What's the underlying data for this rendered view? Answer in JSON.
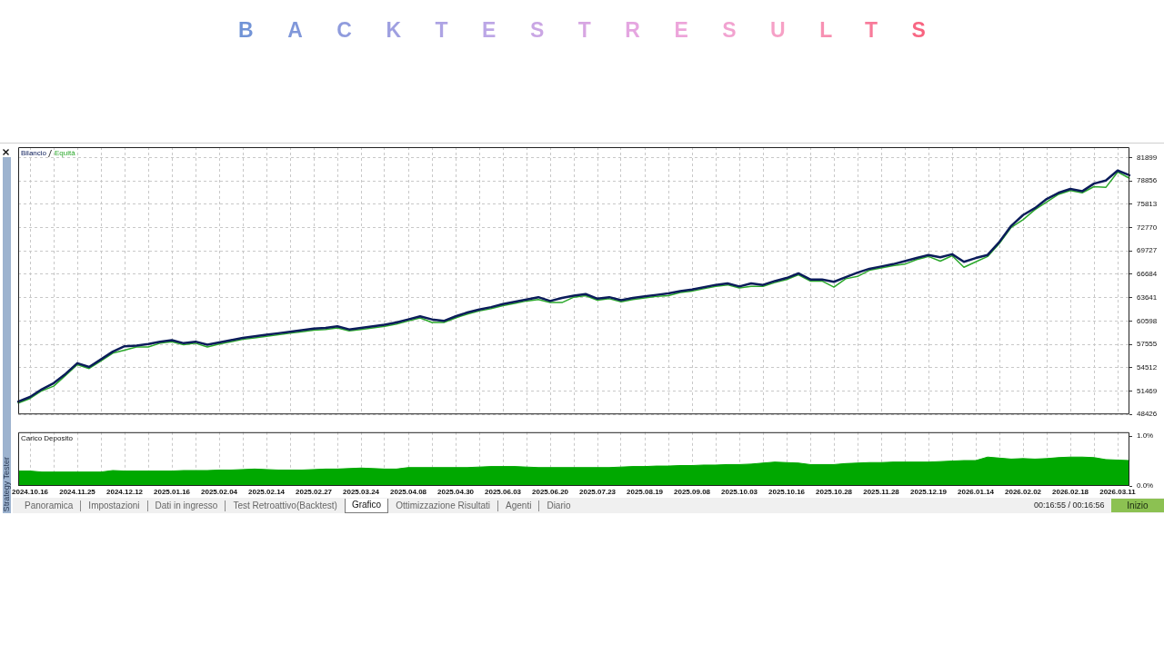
{
  "chart_data": [
    {
      "type": "line",
      "title": "BACKTESTRESULTS",
      "categories": [
        null,
        "2024.10.16",
        null,
        null,
        null,
        "2024.11.25",
        null,
        null,
        null,
        "2024.12.12",
        null,
        null,
        null,
        "2025.01.16",
        null,
        null,
        null,
        "2025.02.04",
        null,
        null,
        null,
        "2025.02.14",
        null,
        null,
        null,
        "2025.02.27",
        null,
        null,
        null,
        "2025.03.24",
        null,
        null,
        null,
        "2025.04.08",
        null,
        null,
        null,
        "2025.04.30",
        null,
        null,
        null,
        "2025.06.03",
        null,
        null,
        null,
        "2025.06.20",
        null,
        null,
        null,
        "2025.07.23",
        null,
        null,
        null,
        "2025.08.19",
        null,
        null,
        null,
        "2025.09.08",
        null,
        null,
        null,
        "2025.10.03",
        null,
        null,
        null,
        "2025.10.16",
        null,
        null,
        null,
        "2025.10.28",
        null,
        null,
        null,
        "2025.11.28",
        null,
        null,
        null,
        "2025.12.19",
        null,
        null,
        null,
        "2026.01.14",
        null,
        null,
        null,
        "2026.02.02",
        null,
        null,
        null,
        "2026.02.18",
        null,
        null,
        null,
        "2026.03.11",
        null
      ],
      "series": [
        {
          "name": "Bilancio",
          "color": "#0b1c5a",
          "values": [
            50100,
            50700,
            51700,
            52500,
            53700,
            55100,
            54600,
            55600,
            56600,
            57300,
            57400,
            57600,
            57900,
            58100,
            57700,
            57900,
            57500,
            57800,
            58100,
            58400,
            58600,
            58800,
            59000,
            59200,
            59400,
            59600,
            59700,
            59900,
            59500,
            59700,
            59900,
            60100,
            60400,
            60800,
            61200,
            60800,
            60600,
            61200,
            61700,
            62100,
            62400,
            62800,
            63100,
            63400,
            63700,
            63200,
            63600,
            63900,
            64100,
            63500,
            63700,
            63300,
            63600,
            63800,
            64000,
            64200,
            64500,
            64700,
            65000,
            65300,
            65500,
            65100,
            65500,
            65300,
            65800,
            66200,
            66800,
            66000,
            66000,
            65700,
            66300,
            66900,
            67400,
            67700,
            68000,
            68400,
            68800,
            69200,
            68900,
            69300,
            68300,
            68800,
            69200,
            70900,
            73000,
            74400,
            75300,
            76500,
            77300,
            77800,
            77500,
            78500,
            78900,
            80200,
            79600
          ]
        },
        {
          "name": "Equità",
          "color": "#2aa82a",
          "values": [
            49900,
            50500,
            51500,
            52100,
            53500,
            54900,
            54400,
            55400,
            56400,
            56800,
            57200,
            57200,
            57700,
            57900,
            57500,
            57700,
            57200,
            57600,
            57900,
            58200,
            58400,
            58600,
            58800,
            59000,
            59200,
            59400,
            59500,
            59700,
            59300,
            59500,
            59700,
            59900,
            60200,
            60600,
            61000,
            60400,
            60400,
            61000,
            61500,
            61900,
            62200,
            62600,
            62900,
            63200,
            63400,
            63000,
            63000,
            63700,
            63900,
            63300,
            63500,
            63100,
            63400,
            63600,
            63800,
            63900,
            64300,
            64500,
            64800,
            65100,
            65300,
            64900,
            65100,
            65100,
            65600,
            66000,
            66600,
            65800,
            65800,
            65000,
            66100,
            66400,
            67200,
            67500,
            67800,
            68000,
            68600,
            69000,
            68400,
            69100,
            67600,
            68300,
            69000,
            70700,
            72800,
            73800,
            75100,
            76100,
            77100,
            77600,
            77300,
            78100,
            78000,
            80000,
            79200
          ]
        }
      ],
      "ylim": [
        48426,
        83250
      ],
      "yticks": [
        48426,
        51469,
        54512,
        57555,
        60598,
        63641,
        66684,
        69727,
        72770,
        75813,
        78856,
        81899
      ],
      "grid": true,
      "legend": "top left",
      "tick_labels": "y"
    },
    {
      "type": "area",
      "title": "Carico Deposito",
      "categories": [
        null,
        "2024.10.16",
        null,
        null,
        null,
        "2024.11.25",
        null,
        null,
        null,
        "2024.12.12",
        null,
        null,
        null,
        "2025.01.16",
        null,
        null,
        null,
        "2025.02.04",
        null,
        null,
        null,
        "2025.02.14",
        null,
        null,
        null,
        "2025.02.27",
        null,
        null,
        null,
        "2025.03.24",
        null,
        null,
        null,
        "2025.04.08",
        null,
        null,
        null,
        "2025.04.30",
        null,
        null,
        null,
        "2025.06.03",
        null,
        null,
        null,
        "2025.06.20",
        null,
        null,
        null,
        "2025.07.23",
        null,
        null,
        null,
        "2025.08.19",
        null,
        null,
        null,
        "2025.09.08",
        null,
        null,
        null,
        "2025.10.03",
        null,
        null,
        null,
        "2025.10.16",
        null,
        null,
        null,
        "2025.10.28",
        null,
        null,
        null,
        "2025.11.28",
        null,
        null,
        null,
        "2025.12.19",
        null,
        null,
        null,
        "2026.01.14",
        null,
        null,
        null,
        "2026.02.02",
        null,
        null,
        null,
        "2026.02.18",
        null,
        null,
        null,
        "2026.03.11",
        null
      ],
      "color": "#00a800",
      "values": [
        0.3,
        0.3,
        0.28,
        0.28,
        0.28,
        0.28,
        0.28,
        0.28,
        0.31,
        0.3,
        0.3,
        0.3,
        0.3,
        0.3,
        0.31,
        0.31,
        0.31,
        0.32,
        0.32,
        0.33,
        0.34,
        0.33,
        0.32,
        0.32,
        0.32,
        0.33,
        0.34,
        0.34,
        0.35,
        0.36,
        0.35,
        0.34,
        0.34,
        0.37,
        0.37,
        0.37,
        0.37,
        0.37,
        0.37,
        0.38,
        0.39,
        0.39,
        0.39,
        0.38,
        0.37,
        0.37,
        0.37,
        0.37,
        0.37,
        0.37,
        0.37,
        0.38,
        0.39,
        0.39,
        0.4,
        0.4,
        0.41,
        0.41,
        0.42,
        0.42,
        0.43,
        0.43,
        0.44,
        0.46,
        0.48,
        0.47,
        0.46,
        0.43,
        0.43,
        0.43,
        0.45,
        0.46,
        0.47,
        0.47,
        0.48,
        0.48,
        0.48,
        0.48,
        0.49,
        0.5,
        0.51,
        0.51,
        0.58,
        0.56,
        0.54,
        0.55,
        0.54,
        0.55,
        0.57,
        0.58,
        0.58,
        0.57,
        0.53,
        0.52,
        0.51
      ],
      "ylim": [
        0,
        1.08
      ],
      "yticks": [
        {
          "value": 0,
          "label": "0.0%"
        },
        {
          "value": 1,
          "label": "1.0%"
        }
      ],
      "grid": "x",
      "annotations": [
        "Panoramica",
        "Impostazioni",
        "Dati in ingresso",
        "Test Retroattivo(Backtest)",
        "Grafico",
        "Ottimizzazione Risultati",
        "Agenti",
        "Diario",
        "00:16:55 / 00:16:56",
        "Inizio",
        "Strategy Tester"
      ]
    }
  ]
}
